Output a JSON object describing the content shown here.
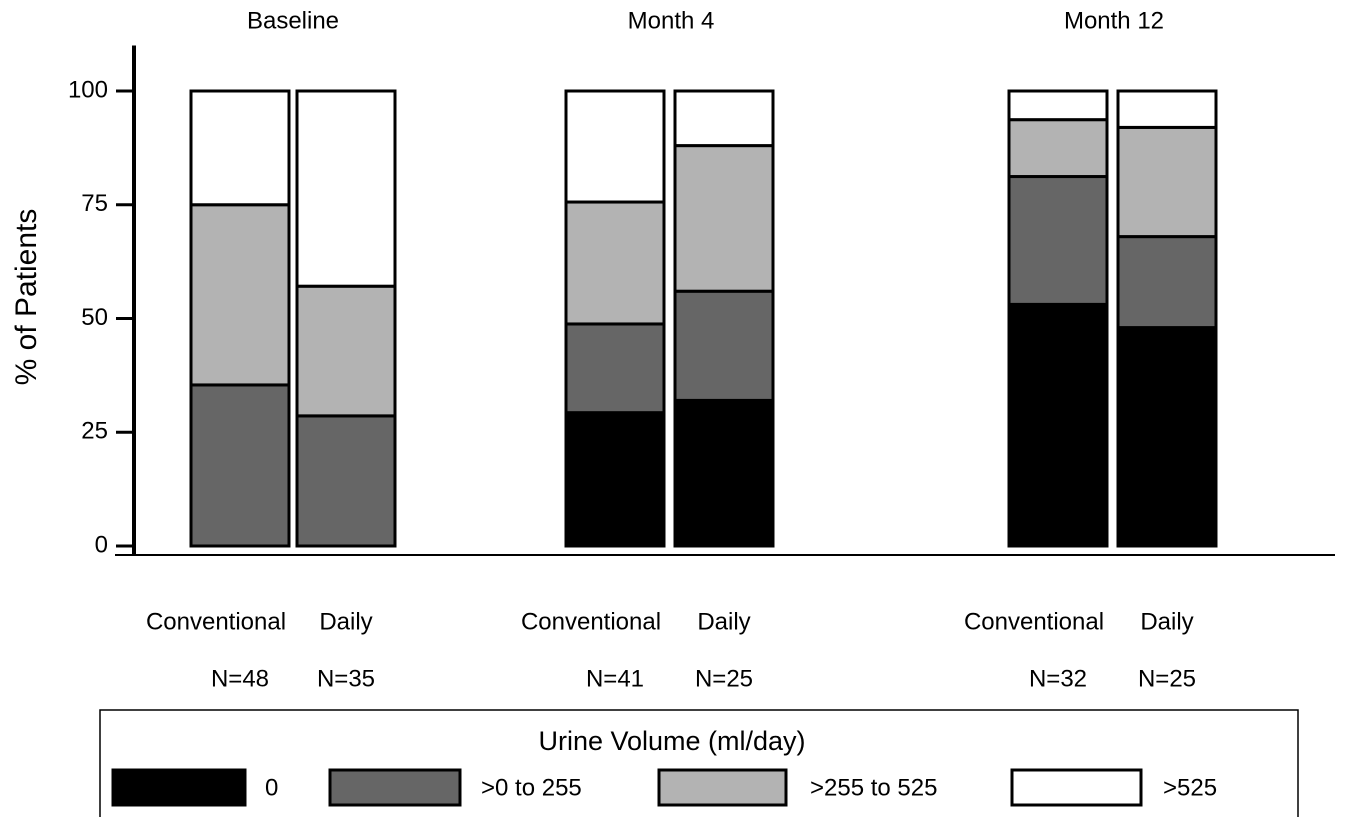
{
  "chart_data": {
    "type": "stacked_bar",
    "groups": [
      "Baseline",
      "Month 4",
      "Month 12"
    ],
    "categories": [
      "Conventional",
      "Daily",
      "Conventional",
      "Daily",
      "Conventional",
      "Daily"
    ],
    "sample_sizes": [
      "N=48",
      "N=35",
      "N=41",
      "N=25",
      "N=32",
      "N=25"
    ],
    "ylabel": "% of Patients",
    "ylim": [
      0,
      110
    ],
    "yticks": [
      0,
      25,
      50,
      75,
      100
    ],
    "legend_title": "Urine Volume (ml/day)",
    "series": [
      {
        "name": "0",
        "color": "#000000",
        "values": [
          0,
          0,
          29.3,
          32,
          53.1,
          48
        ]
      },
      {
        "name": ">0 to 255",
        "color": "#666666",
        "values": [
          35.4,
          28.6,
          19.5,
          24,
          28.1,
          20
        ]
      },
      {
        "name": ">255 to 525",
        "color": "#b3b3b3",
        "values": [
          39.6,
          28.5,
          26.8,
          32,
          12.5,
          24
        ]
      },
      {
        "name": ">525",
        "color": "#ffffff",
        "values": [
          25,
          42.9,
          24.4,
          12,
          6.3,
          8
        ]
      }
    ]
  }
}
